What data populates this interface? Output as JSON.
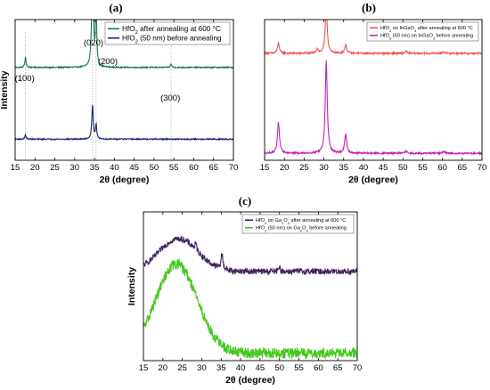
{
  "chart_data": [
    {
      "type": "line",
      "panel": "(a)",
      "xlabel": "2θ (degree)",
      "ylabel": "Intensity",
      "xlim": [
        15,
        70
      ],
      "xticks": [
        "15",
        "20",
        "25",
        "30",
        "35",
        "40",
        "45",
        "50",
        "55",
        "60",
        "65",
        "70"
      ],
      "legend_position": "top-right",
      "annotations": [
        {
          "text": "(100)",
          "x": 17.6
        },
        {
          "text": "(020)",
          "x": 34.5
        },
        {
          "text": "(200)",
          "x": 35.4
        },
        {
          "text": "(300)",
          "x": 54.3
        }
      ],
      "reference_lines_x": [
        17.6,
        34.5,
        35.4,
        54.3
      ],
      "series": [
        {
          "legend_parts": [
            "HfO",
            "2",
            " after annealing at 600 °C"
          ],
          "color": "#1a7a4a",
          "baseline": 0.66,
          "noise": 0.004,
          "peaks": [
            [
              17.6,
              0.07,
              0.18
            ],
            [
              34.5,
              0.85,
              0.22
            ],
            [
              35.4,
              0.42,
              0.18
            ],
            [
              54.3,
              0.025,
              0.18
            ]
          ]
        },
        {
          "legend_parts": [
            "HfO",
            "2",
            " (50 nm) before annealing"
          ],
          "color": "#1a237e",
          "baseline": 0.15,
          "noise": 0.004,
          "peaks": [
            [
              17.6,
              0.03,
              0.18
            ],
            [
              34.5,
              0.24,
              0.22
            ],
            [
              35.4,
              0.1,
              0.18
            ]
          ]
        }
      ]
    },
    {
      "type": "line",
      "panel": "(b)",
      "xlabel": "2θ (degree)",
      "ylabel": "",
      "xlim": [
        15,
        70
      ],
      "xticks": [
        "15",
        "20",
        "25",
        "30",
        "35",
        "40",
        "45",
        "50",
        "55",
        "60",
        "65",
        "70"
      ],
      "legend_position": "top-right",
      "series": [
        {
          "legend_parts": [
            "HfO",
            "2",
            " on InGaO",
            "3",
            " after annealing at 600 °C"
          ],
          "color": "#ef5350",
          "baseline": 0.76,
          "noise": 0.006,
          "peaks": [
            [
              18.5,
              0.07,
              0.3
            ],
            [
              28.3,
              0.03,
              0.3
            ],
            [
              30.6,
              0.32,
              0.3
            ],
            [
              35.5,
              0.06,
              0.3
            ],
            [
              50.8,
              0.015,
              0.3
            ],
            [
              60.3,
              0.012,
              0.3
            ]
          ]
        },
        {
          "legend_parts": [
            "HfO",
            "2",
            " (50 nm) on InGaO",
            "3",
            " before annealing"
          ],
          "color": "#c020c0",
          "baseline": 0.05,
          "noise": 0.006,
          "peaks": [
            [
              18.5,
              0.22,
              0.3
            ],
            [
              30.6,
              0.66,
              0.3
            ],
            [
              35.5,
              0.13,
              0.3
            ],
            [
              50.8,
              0.015,
              0.3
            ],
            [
              60.3,
              0.012,
              0.3
            ]
          ]
        }
      ]
    },
    {
      "type": "line",
      "panel": "(c)",
      "xlabel": "2θ (degree)",
      "ylabel": "Intensity",
      "xlim": [
        15,
        70
      ],
      "xticks": [
        "15",
        "20",
        "25",
        "30",
        "35",
        "40",
        "45",
        "50",
        "55",
        "60",
        "65",
        "70"
      ],
      "legend_position": "top-right",
      "series": [
        {
          "legend_parts": [
            "HfO",
            "2",
            " on Ga",
            "2",
            "O",
            "3",
            " after annealing at 600 °C"
          ],
          "color": "#3f1f5f",
          "baseline": 0.6,
          "hump": [
            0.22,
            24,
            7
          ],
          "noise": 0.02,
          "peaks": [
            [
              28.5,
              0.04,
              0.25
            ],
            [
              35.2,
              0.1,
              0.3
            ],
            [
              50,
              0.02,
              0.3
            ]
          ]
        },
        {
          "legend_parts": [
            "HfO",
            "2",
            " (50 nm) on Ga",
            "2",
            "O",
            "3",
            " before annealing"
          ],
          "color": "#44c81c",
          "baseline": 0.05,
          "hump": [
            0.6,
            23.5,
            7.5
          ],
          "noise": 0.035,
          "peaks": []
        }
      ]
    }
  ]
}
